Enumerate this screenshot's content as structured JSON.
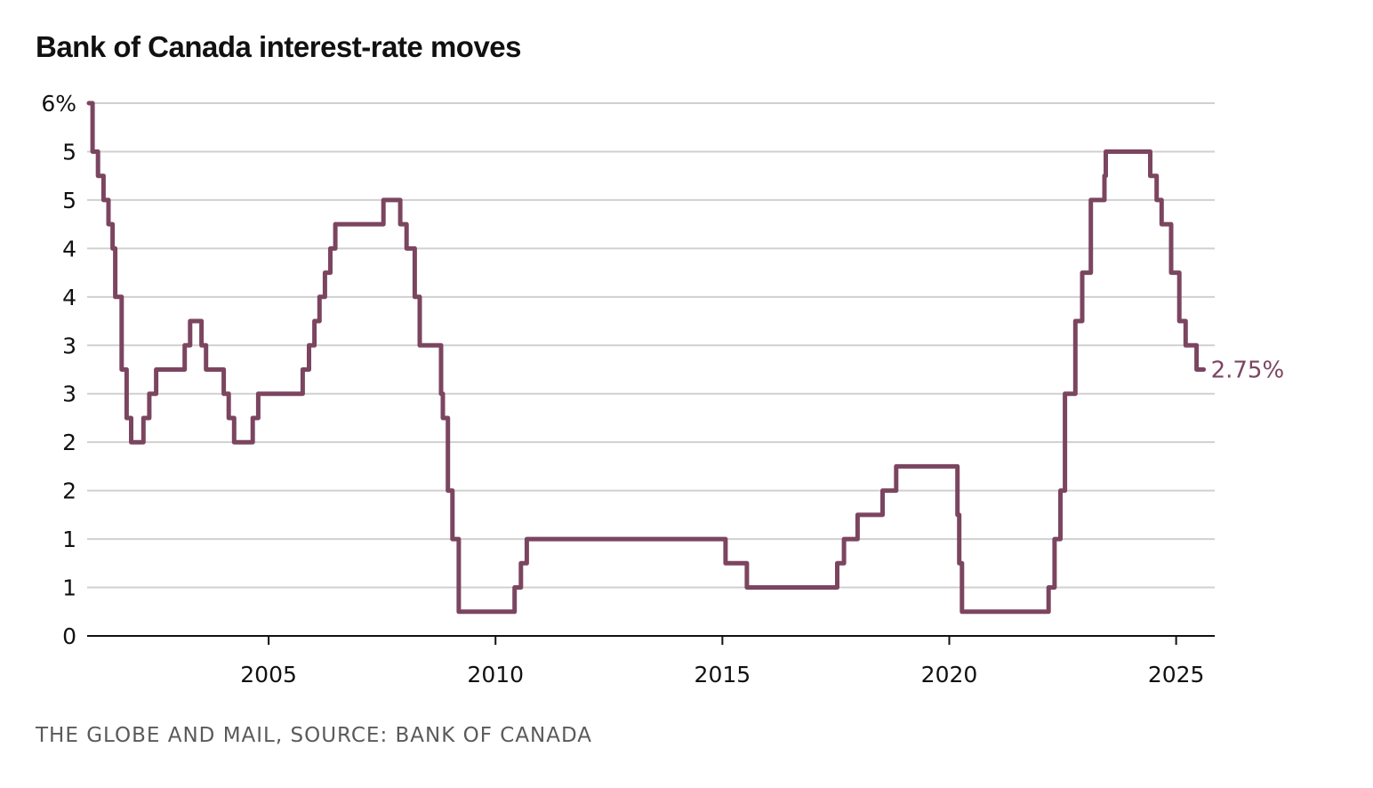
{
  "title": "Bank of Canada interest-rate moves",
  "source": "THE GLOBE AND MAIL, SOURCE: BANK OF CANADA",
  "colors": {
    "line": "#7b4560",
    "grid": "#d0d0d0",
    "text": "#111111",
    "source": "#5a5a5a"
  },
  "chart_data": {
    "type": "line",
    "title": "Bank of Canada interest-rate moves",
    "xlabel": "",
    "ylabel": "",
    "xlim": [
      2001.0,
      2025.85
    ],
    "ylim": [
      0,
      5.5
    ],
    "grid": true,
    "step": "post",
    "y_ticks": [
      {
        "value": 5.5,
        "label": "6%"
      },
      {
        "value": 5.0,
        "label": "5"
      },
      {
        "value": 4.5,
        "label": "5"
      },
      {
        "value": 4.0,
        "label": "4"
      },
      {
        "value": 3.5,
        "label": "4"
      },
      {
        "value": 3.0,
        "label": "3"
      },
      {
        "value": 2.5,
        "label": "3"
      },
      {
        "value": 2.0,
        "label": "2"
      },
      {
        "value": 1.5,
        "label": "2"
      },
      {
        "value": 1.0,
        "label": "1"
      },
      {
        "value": 0.5,
        "label": "1"
      },
      {
        "value": 0.0,
        "label": "0"
      }
    ],
    "x_ticks": [
      {
        "value": 2005,
        "label": "2005"
      },
      {
        "value": 2010,
        "label": "2010"
      },
      {
        "value": 2015,
        "label": "2015"
      },
      {
        "value": 2020,
        "label": "2020"
      },
      {
        "value": 2025,
        "label": "2025"
      }
    ],
    "end_label": "2.75%",
    "series": [
      {
        "name": "",
        "x": [
          2001.04,
          2001.12,
          2001.24,
          2001.36,
          2001.47,
          2001.56,
          2001.62,
          2001.76,
          2001.87,
          2001.97,
          2002.24,
          2002.37,
          2002.52,
          2003.15,
          2003.27,
          2003.52,
          2003.62,
          2004.01,
          2004.12,
          2004.24,
          2004.65,
          2004.77,
          2005.75,
          2005.89,
          2006.01,
          2006.12,
          2006.24,
          2006.36,
          2006.47,
          2007.53,
          2007.9,
          2008.04,
          2008.22,
          2008.33,
          2008.8,
          2008.84,
          2008.95,
          2009.05,
          2009.19,
          2010.42,
          2010.56,
          2010.69,
          2015.07,
          2015.54,
          2017.53,
          2017.68,
          2017.98,
          2018.53,
          2018.83,
          2020.18,
          2020.22,
          2020.28,
          2022.19,
          2022.32,
          2022.45,
          2022.55,
          2022.78,
          2022.93,
          2023.12,
          2023.42,
          2023.45,
          2024.43,
          2024.57,
          2024.68,
          2024.89,
          2025.07,
          2025.21,
          2025.45
        ],
        "values": [
          5.5,
          5.0,
          4.75,
          4.5,
          4.25,
          4.0,
          3.5,
          2.75,
          2.25,
          2.0,
          2.25,
          2.5,
          2.75,
          3.0,
          3.25,
          3.0,
          2.75,
          2.5,
          2.25,
          2.0,
          2.25,
          2.5,
          2.75,
          3.0,
          3.25,
          3.5,
          3.75,
          4.0,
          4.25,
          4.5,
          4.25,
          4.0,
          3.5,
          3.0,
          2.5,
          2.25,
          1.5,
          1.0,
          0.25,
          0.5,
          0.75,
          1.0,
          0.75,
          0.5,
          0.75,
          1.0,
          1.25,
          1.5,
          1.75,
          1.25,
          0.75,
          0.25,
          0.5,
          1.0,
          1.5,
          2.5,
          3.25,
          3.75,
          4.5,
          4.75,
          5.0,
          4.75,
          4.5,
          4.25,
          3.75,
          3.25,
          3.0,
          2.75
        ]
      }
    ]
  }
}
